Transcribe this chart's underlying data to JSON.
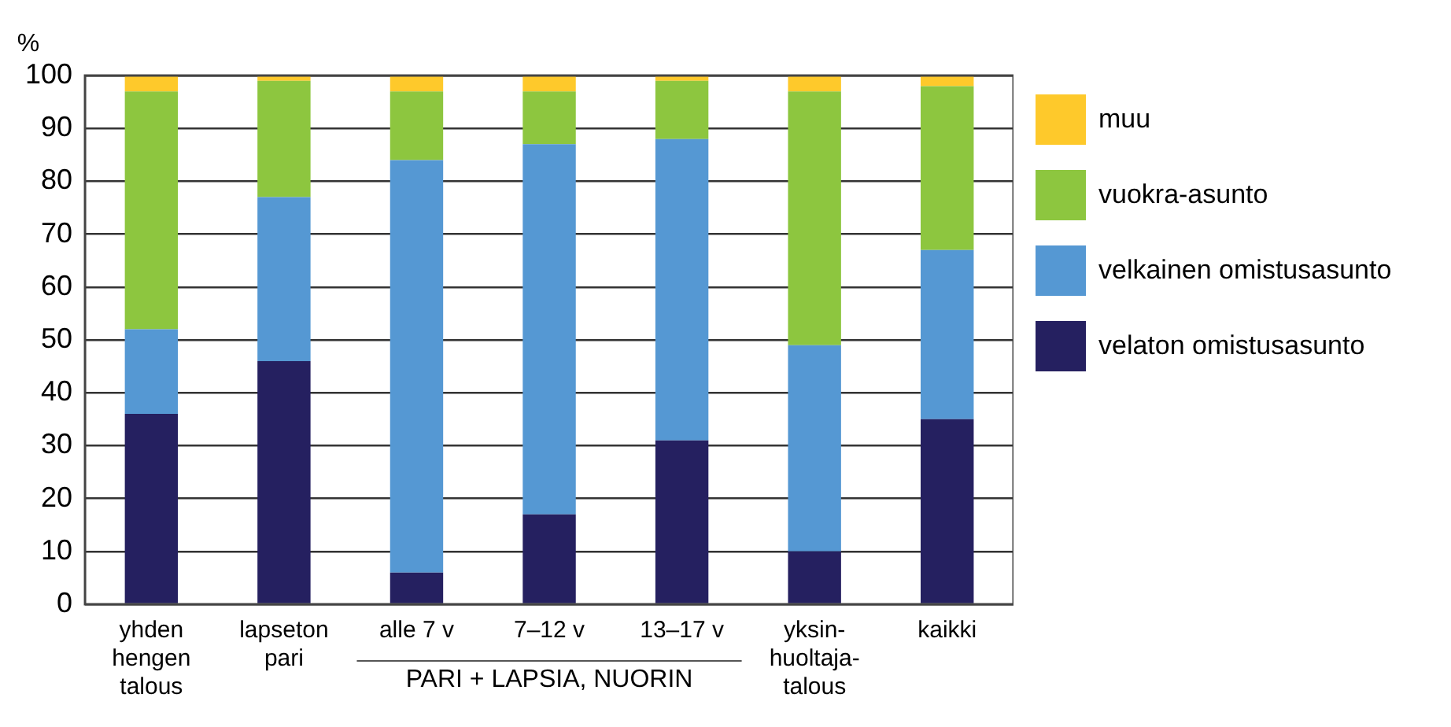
{
  "chart_data": {
    "type": "bar",
    "stacked": true,
    "ylabel": "%",
    "categories": [
      "yhden\nhengen\ntalous",
      "lapseton\npari",
      "alle 7 v",
      "7–12 v",
      "13–17 v",
      "yksin-\nhuoltaja-\ntalous",
      "kaikki"
    ],
    "series": [
      {
        "name": "velaton omistusasunto",
        "color": "#252060",
        "values": [
          36,
          46,
          6,
          17,
          31,
          10,
          35
        ]
      },
      {
        "name": "velkainen omistusasunto",
        "color": "#5598d3",
        "values": [
          16,
          31,
          78,
          70,
          57,
          39,
          32
        ]
      },
      {
        "name": "vuokra-asunto",
        "color": "#8dc63f",
        "values": [
          45,
          22,
          13,
          10,
          11,
          48,
          31
        ]
      },
      {
        "name": "muu",
        "color": "#fec92b",
        "values": [
          3,
          1,
          3,
          3,
          1,
          3,
          2
        ]
      }
    ],
    "ylim": [
      0,
      100
    ],
    "yticks": [
      0,
      10,
      20,
      30,
      40,
      50,
      60,
      70,
      80,
      90,
      100
    ],
    "grid": "y",
    "legend": "right",
    "annotations": [
      "PARI + LAPSIA, NUORIN"
    ]
  }
}
